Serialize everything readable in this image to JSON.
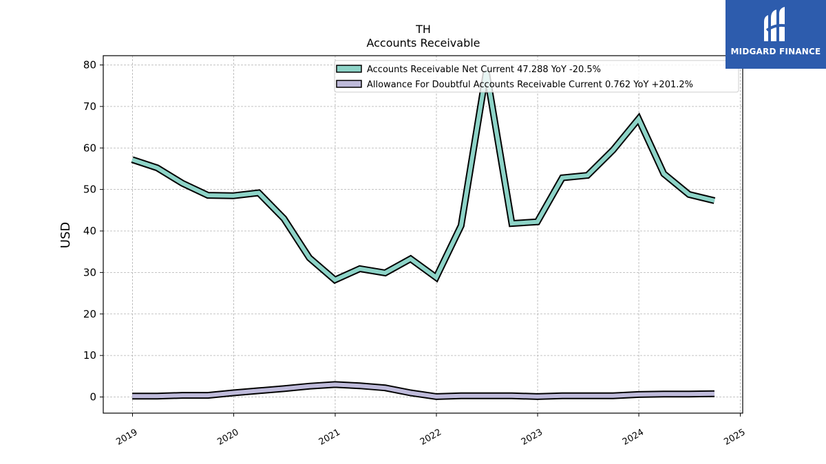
{
  "chart_data": {
    "type": "line",
    "title": "TH",
    "subtitle": "Accounts Receivable",
    "xlabel": "",
    "ylabel": "USD",
    "ylim": [
      -4,
      82.5
    ],
    "yticks": [
      0,
      10,
      20,
      30,
      40,
      50,
      60,
      70,
      80
    ],
    "xticks": [
      "2019",
      "2020",
      "2021",
      "2022",
      "2023",
      "2024",
      "2025"
    ],
    "x": [
      "2018-12-31",
      "2019-03-31",
      "2019-06-30",
      "2019-09-30",
      "2019-12-31",
      "2020-03-31",
      "2020-06-30",
      "2020-09-30",
      "2020-12-31",
      "2021-03-31",
      "2021-06-30",
      "2021-09-30",
      "2021-12-31",
      "2022-03-31",
      "2022-06-30",
      "2022-09-30",
      "2022-12-31",
      "2023-03-31",
      "2023-06-30",
      "2023-09-30",
      "2023-12-31",
      "2024-03-31",
      "2024-06-30",
      "2024-09-30"
    ],
    "series": [
      {
        "name": "Accounts Receivable Net Current",
        "legend_label": "Accounts Receivable Net Current  47.288 YoY -20.5%",
        "color": "#8dd3c7",
        "values": [
          57.2,
          55.2,
          51.5,
          48.6,
          48.5,
          49.2,
          43.0,
          33.5,
          28.2,
          30.9,
          29.9,
          33.3,
          28.8,
          41.3,
          78.5,
          41.8,
          42.2,
          52.8,
          53.4,
          59.5,
          67.0,
          53.8,
          48.8,
          47.3
        ]
      },
      {
        "name": "Allowance For Doubtful Accounts Receivable Current",
        "legend_label": "Allowance For Doubtful Accounts Receivable Current  0.762 YoY +201.2%",
        "color": "#bebada",
        "values": [
          0.2,
          0.2,
          0.4,
          0.4,
          1.0,
          1.5,
          2.0,
          2.6,
          3.0,
          2.7,
          2.2,
          1.0,
          0.1,
          0.3,
          0.3,
          0.3,
          0.1,
          0.3,
          0.3,
          0.3,
          0.6,
          0.7,
          0.7,
          0.8
        ]
      }
    ],
    "grid": true,
    "legend_position": "top-right"
  },
  "logo": {
    "text": "MIDGARD FINANCE",
    "color": "#2d5cad"
  }
}
